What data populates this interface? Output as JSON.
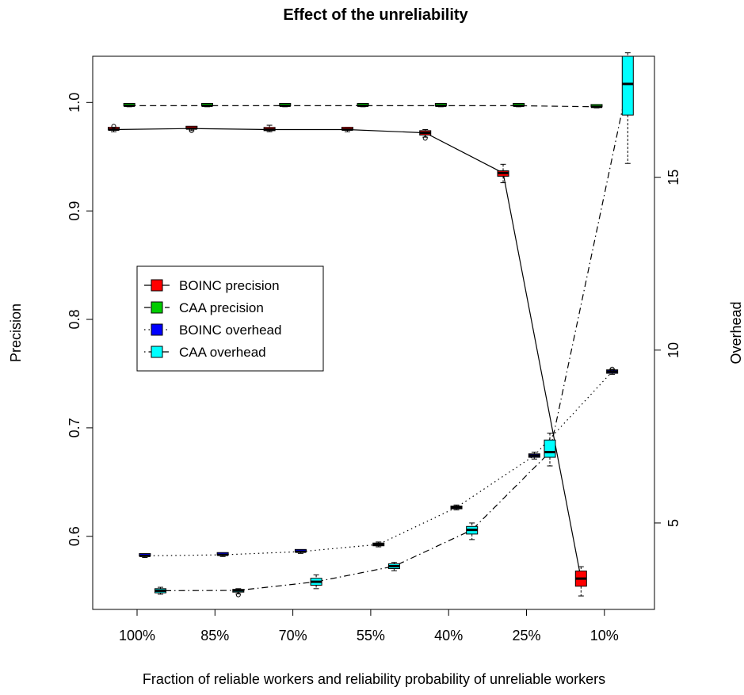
{
  "chart_data": {
    "type": "box",
    "title": "Effect of the unreliability",
    "xlabel": "Fraction of reliable workers and reliability probability of unreliable workers",
    "ylabel": "Precision",
    "y2label": "Overhead",
    "categories": [
      "100%",
      "85%",
      "70%",
      "55%",
      "40%",
      "25%",
      "10%"
    ],
    "ylim": [
      0.5326,
      1.0426
    ],
    "y2lim": [
      2.5,
      18.5
    ],
    "yticks": [
      "0.6",
      "0.7",
      "0.8",
      "0.9",
      "1.0"
    ],
    "yticks_values": [
      0.6,
      0.7,
      0.8,
      0.9,
      1.0
    ],
    "y2ticks": [
      "5",
      "10",
      "15"
    ],
    "y2ticks_values": [
      5,
      10,
      15
    ],
    "legend_position": "center-left",
    "grid": false,
    "series": [
      {
        "name": "BOINC precision",
        "axis": "left",
        "color": "#ff0000",
        "line": "solid",
        "offset": -0.3,
        "median": [
          0.975,
          0.976,
          0.975,
          0.975,
          0.972,
          0.935,
          0.561
        ],
        "box": [
          [
            0.974,
            0.976
          ],
          [
            0.975,
            0.977
          ],
          [
            0.974,
            0.977
          ],
          [
            0.974,
            0.976
          ],
          [
            0.97,
            0.974
          ],
          [
            0.932,
            0.937
          ],
          [
            0.554,
            0.568
          ]
        ],
        "whiskers": [
          [
            0.973,
            0.977
          ],
          [
            0.974,
            0.977
          ],
          [
            0.973,
            0.979
          ],
          [
            0.973,
            0.977
          ],
          [
            0.968,
            0.975
          ],
          [
            0.926,
            0.943
          ],
          [
            0.545,
            0.572
          ]
        ],
        "outliers": [
          [
            0.978
          ],
          [
            0.974
          ],
          [],
          [],
          [
            0.967
          ],
          [],
          []
        ]
      },
      {
        "name": "CAA precision",
        "axis": "left",
        "color": "#00cd00",
        "line": "dashed",
        "offset": -0.1,
        "median": [
          0.997,
          0.997,
          0.997,
          0.997,
          0.997,
          0.997,
          0.996
        ],
        "box": [
          [
            0.996,
            0.998
          ],
          [
            0.996,
            0.998
          ],
          [
            0.996,
            0.998
          ],
          [
            0.996,
            0.998
          ],
          [
            0.996,
            0.998
          ],
          [
            0.996,
            0.998
          ],
          [
            0.995,
            0.997
          ]
        ],
        "whiskers": [
          [
            0.996,
            0.998
          ],
          [
            0.996,
            0.998
          ],
          [
            0.996,
            0.998
          ],
          [
            0.996,
            0.998
          ],
          [
            0.996,
            0.998
          ],
          [
            0.996,
            0.998
          ],
          [
            0.995,
            0.998
          ]
        ],
        "outliers": [
          [],
          [],
          [],
          [],
          [],
          [],
          []
        ]
      },
      {
        "name": "BOINC overhead",
        "axis": "right",
        "color": "#0000ff",
        "line": "dotted",
        "offset": 0.1,
        "median": [
          4.05,
          4.08,
          4.17,
          4.38,
          5.45,
          6.95,
          9.38
        ],
        "box": [
          [
            4.02,
            4.08
          ],
          [
            4.05,
            4.11
          ],
          [
            4.14,
            4.2
          ],
          [
            4.34,
            4.42
          ],
          [
            5.41,
            5.49
          ],
          [
            6.9,
            7.0
          ],
          [
            9.33,
            9.43
          ]
        ],
        "whiskers": [
          [
            4.0,
            4.1
          ],
          [
            4.03,
            4.13
          ],
          [
            4.12,
            4.22
          ],
          [
            4.31,
            4.45
          ],
          [
            5.38,
            5.52
          ],
          [
            6.85,
            7.05
          ],
          [
            9.3,
            9.45
          ]
        ],
        "outliers": [
          [],
          [],
          [],
          [],
          [],
          [],
          [
            9.45
          ]
        ]
      },
      {
        "name": "CAA overhead",
        "axis": "right",
        "color": "#00ffff",
        "line": "dotdash",
        "offset": 0.3,
        "median": [
          3.04,
          3.05,
          3.3,
          3.75,
          4.8,
          7.05,
          17.7
        ],
        "box": [
          [
            2.98,
            3.1
          ],
          [
            3.0,
            3.08
          ],
          [
            3.2,
            3.4
          ],
          [
            3.68,
            3.82
          ],
          [
            4.68,
            4.9
          ],
          [
            6.9,
            7.4
          ],
          [
            16.8,
            18.5
          ]
        ],
        "whiskers": [
          [
            2.94,
            3.14
          ],
          [
            2.95,
            3.1
          ],
          [
            3.1,
            3.5
          ],
          [
            3.62,
            3.86
          ],
          [
            4.52,
            5.0
          ],
          [
            6.65,
            7.6
          ],
          [
            15.4,
            18.6
          ]
        ],
        "outliers": [
          [],
          [
            2.92
          ],
          [],
          [],
          [],
          [],
          []
        ]
      }
    ]
  }
}
